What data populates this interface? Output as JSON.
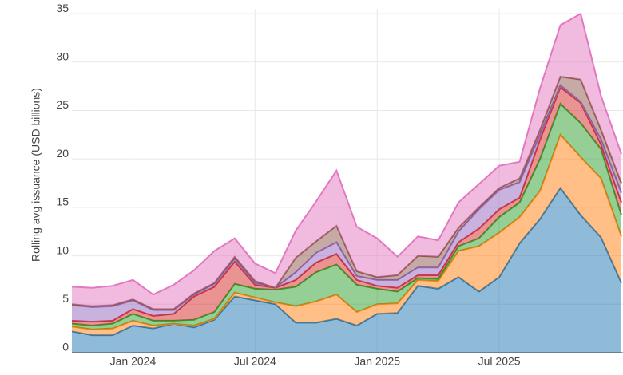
{
  "chart_data": {
    "type": "stacked_area",
    "y_label": "Rolling avg issuance (USD billions)",
    "x": [
      "2023-10",
      "2023-11",
      "2023-12",
      "2024-01",
      "2024-02",
      "2024-03",
      "2024-04",
      "2024-05",
      "2024-06",
      "2024-07",
      "2024-08",
      "2024-09",
      "2024-10",
      "2024-11",
      "2024-12",
      "2025-01",
      "2025-02",
      "2025-03",
      "2025-04",
      "2025-05",
      "2025-06",
      "2025-07",
      "2025-08",
      "2025-09",
      "2025-10",
      "2025-11",
      "2025-12",
      "2026-01"
    ],
    "xlim": [
      "2023-10",
      "2026-01"
    ],
    "xticks": [
      {
        "value": "2024-01",
        "label": "Jan 2024"
      },
      {
        "value": "2024-07",
        "label": "Jul 2024"
      },
      {
        "value": "2025-01",
        "label": "Jan 2025"
      },
      {
        "value": "2025-07",
        "label": "Jul 2025"
      }
    ],
    "ylim": [
      0,
      35.5
    ],
    "yticks": [
      0,
      5,
      10,
      15,
      20,
      25,
      30,
      35
    ],
    "grid": true,
    "series": [
      {
        "color": "#1f77b4",
        "values": [
          2.2,
          1.8,
          1.8,
          2.8,
          2.5,
          3.0,
          2.6,
          3.4,
          5.8,
          5.4,
          5.0,
          3.1,
          3.1,
          3.5,
          2.8,
          4.0,
          4.1,
          6.9,
          6.6,
          7.8,
          6.3,
          7.8,
          11.3,
          13.8,
          17.0,
          14.2,
          11.9,
          7.2
        ]
      },
      {
        "color": "#ff7f0e",
        "values": [
          0.5,
          0.6,
          0.7,
          0.5,
          0.3,
          0.0,
          0.2,
          0.1,
          0.4,
          0.3,
          0.2,
          1.7,
          2.2,
          2.5,
          1.4,
          1.0,
          1.0,
          0.6,
          0.8,
          2.7,
          4.7,
          4.6,
          2.7,
          2.9,
          5.5,
          6.0,
          6.1,
          4.8
        ]
      },
      {
        "color": "#2ca02c",
        "values": [
          0.3,
          0.4,
          0.5,
          0.7,
          0.5,
          0.3,
          0.6,
          0.7,
          0.9,
          0.9,
          1.3,
          2.0,
          3.0,
          3.1,
          2.8,
          1.6,
          1.2,
          0.2,
          0.2,
          0.5,
          0.8,
          1.6,
          1.5,
          3.3,
          3.2,
          3.5,
          3.0,
          2.2
        ]
      },
      {
        "color": "#d62728",
        "values": [
          0.3,
          0.4,
          0.3,
          0.5,
          0.5,
          0.7,
          2.4,
          2.6,
          2.3,
          0.4,
          0.2,
          0.7,
          1.0,
          1.1,
          0.5,
          0.3,
          0.4,
          0.3,
          0.4,
          0.4,
          1.0,
          0.8,
          0.5,
          2.0,
          1.7,
          2.1,
          0.5,
          1.3
        ]
      },
      {
        "color": "#9467bd",
        "values": [
          1.6,
          1.5,
          1.5,
          0.9,
          0.6,
          0.4,
          0.2,
          0.3,
          0.3,
          0.2,
          0.0,
          0.8,
          1.0,
          1.2,
          0.4,
          0.6,
          0.8,
          0.8,
          0.8,
          1.1,
          2.0,
          2.0,
          1.6,
          0.5,
          0.2,
          0.1,
          0.5,
          1.0
        ]
      },
      {
        "color": "#8c564b",
        "values": [
          0.1,
          0.1,
          0.1,
          0.1,
          0.1,
          0.1,
          0.1,
          0.1,
          0.2,
          0.2,
          0.0,
          1.5,
          1.2,
          1.7,
          0.5,
          0.3,
          0.5,
          1.2,
          1.1,
          0.4,
          0.2,
          0.2,
          0.4,
          0.5,
          0.9,
          2.3,
          1.0,
          1.0
        ]
      },
      {
        "color": "#e377c2",
        "values": [
          1.8,
          1.9,
          2.0,
          2.0,
          1.5,
          2.5,
          2.4,
          3.3,
          1.9,
          1.8,
          1.5,
          2.8,
          4.1,
          5.7,
          4.6,
          4.0,
          1.9,
          2.0,
          1.7,
          2.6,
          2.4,
          2.3,
          1.7,
          4.3,
          5.3,
          6.8,
          3.5,
          3.0
        ]
      }
    ]
  }
}
